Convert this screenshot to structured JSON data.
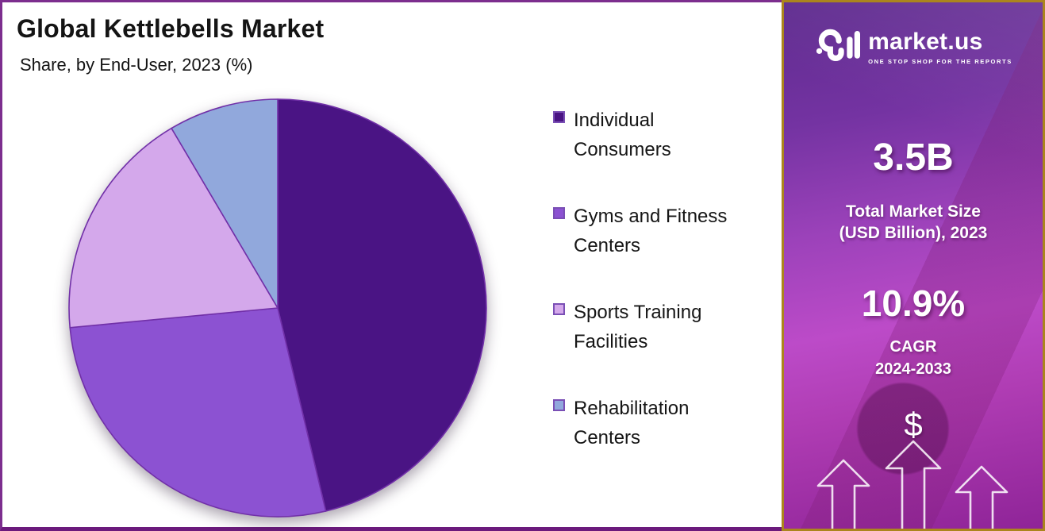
{
  "header": {
    "title": "Global Kettlebells Market",
    "subtitle": "Share, by End-User, 2023 (%)"
  },
  "chart_data": {
    "type": "pie",
    "title": "Global Kettlebells Market",
    "subtitle": "Share, by End-User, 2023 (%)",
    "unit": "%",
    "start_angle_deg": 0,
    "direction": "clockwise",
    "legend_position": "right",
    "slice_border_color": "#7130a8",
    "slices": [
      {
        "label": "Individual Consumers",
        "value": 46.3,
        "color": "#4a1484"
      },
      {
        "label": "Gyms and Fitness Centers",
        "value": 27.2,
        "color": "#8c52d2"
      },
      {
        "label": "Sports Training Facilities",
        "value": 18.0,
        "color": "#d4a8eb"
      },
      {
        "label": "Rehabilitation Centers",
        "value": 8.5,
        "color": "#91a8dc"
      }
    ]
  },
  "sidebar": {
    "logo": {
      "brand": "market.us",
      "tagline": "ONE STOP SHOP FOR THE REPORTS"
    },
    "market_size": {
      "value": "3.5B",
      "label_line1": "Total Market Size",
      "label_line2": "(USD Billion), 2023"
    },
    "cagr": {
      "value": "10.9%",
      "label_line1": "CAGR",
      "label_line2": "2024-2033"
    },
    "dollar_symbol": "$"
  },
  "colors": {
    "panel_border": "#7c2e8e",
    "panel_border_bottom": "#6b1a7c",
    "sidebar_border_gold": "#ab851d",
    "sidebar_gradient_top": "#5e2b8e",
    "sidebar_gradient_mid": "#bc4bc8",
    "sidebar_gradient_bottom": "#8f2498",
    "text_dark": "#141414",
    "text_light": "#ffffff"
  }
}
